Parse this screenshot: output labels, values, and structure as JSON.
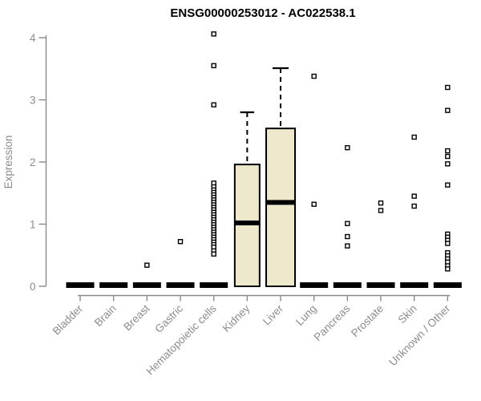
{
  "page": {
    "background": "#ffffff"
  },
  "chart_data": {
    "type": "boxplot",
    "title": "ENSG00000253012 - AC022538.1",
    "ylabel": "Expression",
    "yticks": [
      0,
      1,
      2,
      3,
      4
    ],
    "ylim": [
      0,
      4.1
    ],
    "grid": false,
    "legend": "none",
    "categories": [
      "Bladder",
      "Brain",
      "Breast",
      "Gastric",
      "Hematopoietic cells",
      "Kidney",
      "Liver",
      "Lung",
      "Pancreas",
      "Prostate",
      "Skin",
      "Unknown / Other"
    ],
    "boxes": [
      {
        "category": "Bladder",
        "median": 0,
        "q1": 0,
        "q3": 0,
        "whisker_low": 0,
        "whisker_high": 0,
        "outliers": []
      },
      {
        "category": "Brain",
        "median": 0,
        "q1": 0,
        "q3": 0,
        "whisker_low": 0,
        "whisker_high": 0,
        "outliers": []
      },
      {
        "category": "Breast",
        "median": 0,
        "q1": 0,
        "q3": 0,
        "whisker_low": 0,
        "whisker_high": 0,
        "outliers": [
          0.34
        ]
      },
      {
        "category": "Gastric",
        "median": 0,
        "q1": 0,
        "q3": 0,
        "whisker_low": 0,
        "whisker_high": 0,
        "outliers": [
          0.72
        ]
      },
      {
        "category": "Hematopoietic cells",
        "median": 0,
        "q1": 0,
        "q3": 0,
        "whisker_low": 0,
        "whisker_high": 0,
        "outliers": [
          4.06,
          3.55,
          2.92,
          1.66,
          1.6,
          1.55,
          1.51,
          1.47,
          1.43,
          1.39,
          1.35,
          1.31,
          1.27,
          1.23,
          1.19,
          1.15,
          1.11,
          1.07,
          1.03,
          0.99,
          0.95,
          0.91,
          0.87,
          0.83,
          0.79,
          0.75,
          0.71,
          0.67,
          0.63,
          0.57,
          0.52
        ]
      },
      {
        "category": "Kidney",
        "median": 1.02,
        "q1": 0,
        "q3": 1.96,
        "whisker_low": 0,
        "whisker_high": 2.8,
        "outliers": []
      },
      {
        "category": "Liver",
        "median": 1.35,
        "q1": 0,
        "q3": 2.54,
        "whisker_low": 0,
        "whisker_high": 3.51,
        "outliers": []
      },
      {
        "category": "Lung",
        "median": 0,
        "q1": 0,
        "q3": 0,
        "whisker_low": 0,
        "whisker_high": 0,
        "outliers": [
          3.38,
          1.32
        ]
      },
      {
        "category": "Pancreas",
        "median": 0,
        "q1": 0,
        "q3": 0,
        "whisker_low": 0,
        "whisker_high": 0,
        "outliers": [
          2.23,
          1.01,
          0.8,
          0.65
        ]
      },
      {
        "category": "Prostate",
        "median": 0,
        "q1": 0,
        "q3": 0,
        "whisker_low": 0,
        "whisker_high": 0,
        "outliers": [
          1.34,
          1.22
        ]
      },
      {
        "category": "Skin",
        "median": 0,
        "q1": 0,
        "q3": 0,
        "whisker_low": 0,
        "whisker_high": 0,
        "outliers": [
          2.4,
          1.45,
          1.29
        ]
      },
      {
        "category": "Unknown / Other",
        "median": 0,
        "q1": 0,
        "q3": 0,
        "whisker_low": 0,
        "whisker_high": 0,
        "outliers": [
          3.2,
          2.83,
          2.18,
          2.09,
          1.97,
          1.63,
          0.84,
          0.79,
          0.74,
          0.69,
          0.54,
          0.49,
          0.44,
          0.39,
          0.33,
          0.28
        ]
      }
    ],
    "colors": {
      "box_fill": "#EEE8CD",
      "box_border": "#000000",
      "median": "#000000",
      "axis": "#8A8A8A",
      "tick_label": "#8C8C8C",
      "title": "#000000",
      "outlier_stroke": "#000000",
      "outlier_fill": "#FFFFFF",
      "background": "#FFFFFF"
    }
  }
}
